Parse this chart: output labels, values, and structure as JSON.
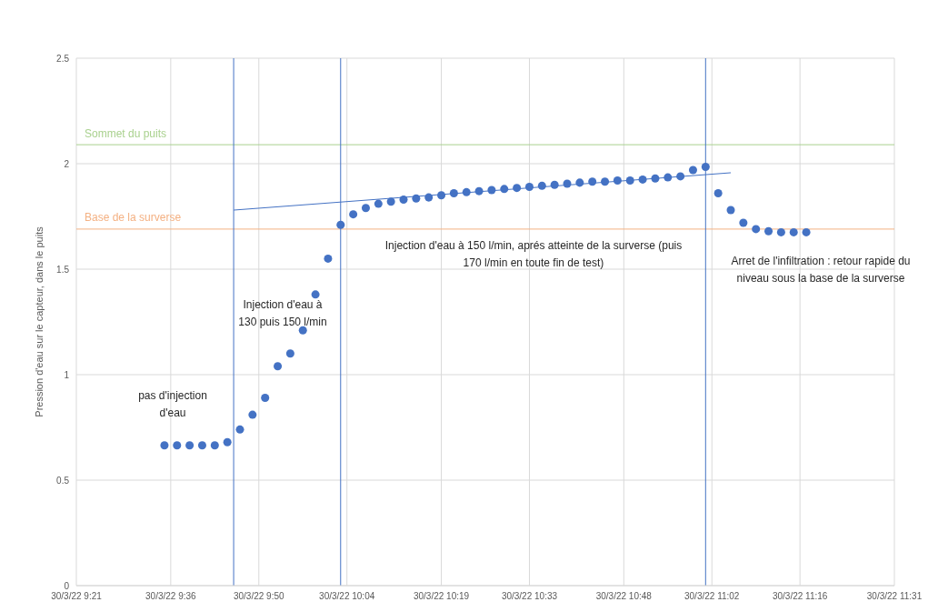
{
  "chart_data": {
    "type": "scatter",
    "ylabel": "Pression d'eau sur le capteur, dans le puits",
    "xlim": [
      "--03-30T09:21",
      "--03-30T11:31"
    ],
    "xticks": [
      {
        "value": "--03-30T09:21",
        "label": "30/3/22 9:21"
      },
      {
        "value": "--03-30T09:36",
        "label": "30/3/22 9:36"
      },
      {
        "value": "--03-30T09:50",
        "label": "30/3/22 9:50"
      },
      {
        "value": "--03-30T10:04",
        "label": "30/3/22 10:04"
      },
      {
        "value": "--03-30T10:19",
        "label": "30/3/22 10:19"
      },
      {
        "value": "--03-30T10:33",
        "label": "30/3/22 10:33"
      },
      {
        "value": "--03-30T10:48",
        "label": "30/3/22 10:48"
      },
      {
        "value": "--03-30T11:02",
        "label": "30/3/22 11:02"
      },
      {
        "value": "--03-30T11:16",
        "label": "30/3/22 11:16"
      },
      {
        "value": "--03-30T11:31",
        "label": "30/3/22 11:31"
      }
    ],
    "ylim": [
      0,
      2.5
    ],
    "yticks": [
      0,
      0.5,
      1,
      1.5,
      2,
      2.5
    ],
    "grid": true,
    "marker": "circle",
    "series": [
      {
        "color": "#4472c4",
        "x": [
          "--03-30T09:35",
          "--03-30T09:37",
          "--03-30T09:39",
          "--03-30T09:41",
          "--03-30T09:43",
          "--03-30T09:45",
          "--03-30T09:47",
          "--03-30T09:49",
          "--03-30T09:51",
          "--03-30T09:53",
          "--03-30T09:55",
          "--03-30T09:57",
          "--03-30T09:59",
          "--03-30T10:01",
          "--03-30T10:03",
          "--03-30T10:05",
          "--03-30T10:07",
          "--03-30T10:09",
          "--03-30T10:11",
          "--03-30T10:13",
          "--03-30T10:15",
          "--03-30T10:17",
          "--03-30T10:19",
          "--03-30T10:21",
          "--03-30T10:23",
          "--03-30T10:25",
          "--03-30T10:27",
          "--03-30T10:29",
          "--03-30T10:31",
          "--03-30T10:33",
          "--03-30T10:35",
          "--03-30T10:37",
          "--03-30T10:39",
          "--03-30T10:41",
          "--03-30T10:43",
          "--03-30T10:45",
          "--03-30T10:47",
          "--03-30T10:49",
          "--03-30T10:51",
          "--03-30T10:53",
          "--03-30T10:55",
          "--03-30T10:57",
          "--03-30T10:59",
          "--03-30T11:01",
          "--03-30T11:03",
          "--03-30T11:05",
          "--03-30T11:07",
          "--03-30T11:09",
          "--03-30T11:11",
          "--03-30T11:13",
          "--03-30T11:15",
          "--03-30T11:17"
        ],
        "values": [
          0.665,
          0.665,
          0.665,
          0.665,
          0.665,
          0.68,
          0.74,
          0.81,
          0.89,
          1.04,
          1.1,
          1.21,
          1.38,
          1.55,
          1.71,
          1.76,
          1.79,
          1.81,
          1.82,
          1.83,
          1.835,
          1.84,
          1.85,
          1.86,
          1.865,
          1.87,
          1.875,
          1.88,
          1.885,
          1.89,
          1.895,
          1.9,
          1.905,
          1.91,
          1.915,
          1.915,
          1.92,
          1.92,
          1.925,
          1.93,
          1.935,
          1.94,
          1.97,
          1.985,
          1.86,
          1.78,
          1.72,
          1.69,
          1.68,
          1.675,
          1.675,
          1.675
        ]
      },
      {
        "type": "line",
        "color": "#4472c4",
        "marker": "none",
        "x": [
          "--03-30T09:46",
          "--03-30T11:05"
        ],
        "values": [
          1.78,
          1.957
        ]
      }
    ],
    "ref_lines": [
      {
        "axis": "y",
        "value": 2.09,
        "label": "Sommet du puits",
        "color": "#a9d18e"
      },
      {
        "axis": "y",
        "value": 1.69,
        "label": "Base de la surverse",
        "color": "#f4b183"
      },
      {
        "axis": "x",
        "value": "--03-30T09:46",
        "color": "#4472c4"
      },
      {
        "axis": "x",
        "value": "--03-30T10:03",
        "color": "#4472c4"
      },
      {
        "axis": "x",
        "value": "--03-30T11:01",
        "color": "#4472c4"
      }
    ],
    "annotations": [
      "pas d'injection d'eau",
      "Injection d'eau à 130 puis 150 l/min",
      "Injection d'eau à 150 l/min, aprés atteinte de la surverse (puis 170 l/min en toute fin de test)",
      "Arret de l'infiltration : retour rapide du niveau sous la base de la surverse"
    ]
  }
}
